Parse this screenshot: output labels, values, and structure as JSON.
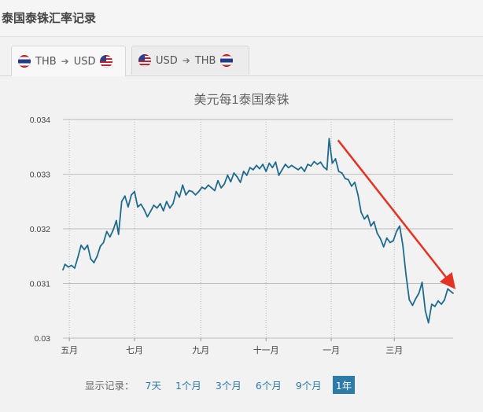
{
  "header": {
    "title": "泰国泰铢汇率记录"
  },
  "tabs": [
    {
      "from": "THB",
      "to": "USD",
      "from_flag": "thailand-flag",
      "to_flag": "usa-flag",
      "active": true
    },
    {
      "from": "USD",
      "to": "THB",
      "from_flag": "usa-flag",
      "to_flag": "thailand-flag",
      "active": false
    }
  ],
  "periods": {
    "label": "显示记录：",
    "options": [
      "7天",
      "1个月",
      "3个月",
      "6个月",
      "9个月",
      "1年"
    ],
    "selected": "1年"
  },
  "colors": {
    "line": "#1f6b8e",
    "arrow": "#e53222",
    "grid": "#bcbcbc",
    "accent": "#2e7ba9"
  },
  "chart_data": {
    "type": "line",
    "title": "美元每1泰国泰铢",
    "xlabel": "",
    "ylabel": "",
    "ylim": [
      0.03,
      0.034
    ],
    "yticks": [
      "0.034",
      "0.033",
      "0.032",
      "0.031",
      "0.03"
    ],
    "yticks_values": [
      0.034,
      0.033,
      0.032,
      0.031,
      0.03
    ],
    "xlim": [
      "2018-04-25",
      "2019-04-25"
    ],
    "xticks": [
      {
        "label": "五月",
        "date": "2018-05-01"
      },
      {
        "label": "七月",
        "date": "2018-07-01"
      },
      {
        "label": "九月",
        "date": "2018-09-01"
      },
      {
        "label": "十一月",
        "date": "2018-11-01"
      },
      {
        "label": "一月",
        "date": "2019-01-01"
      },
      {
        "label": "三月",
        "date": "2019-03-01"
      }
    ],
    "grid": true,
    "legend": "none",
    "series": [
      {
        "values": [
          [
            "2018-04-25",
            0.03125
          ],
          [
            "2018-04-27",
            0.03135
          ],
          [
            "2018-04-30",
            0.0313
          ],
          [
            "2018-05-03",
            0.03133
          ],
          [
            "2018-05-06",
            0.03128
          ],
          [
            "2018-05-09",
            0.03148
          ],
          [
            "2018-05-12",
            0.0317
          ],
          [
            "2018-05-15",
            0.03162
          ],
          [
            "2018-05-18",
            0.0317
          ],
          [
            "2018-05-21",
            0.03145
          ],
          [
            "2018-05-24",
            0.03138
          ],
          [
            "2018-05-27",
            0.0315
          ],
          [
            "2018-05-30",
            0.03168
          ],
          [
            "2018-06-02",
            0.03175
          ],
          [
            "2018-06-05",
            0.03195
          ],
          [
            "2018-06-08",
            0.03185
          ],
          [
            "2018-06-11",
            0.03198
          ],
          [
            "2018-06-14",
            0.03215
          ],
          [
            "2018-06-16",
            0.0319
          ],
          [
            "2018-06-19",
            0.0325
          ],
          [
            "2018-06-22",
            0.0326
          ],
          [
            "2018-06-25",
            0.0324
          ],
          [
            "2018-06-28",
            0.03262
          ],
          [
            "2018-07-01",
            0.03268
          ],
          [
            "2018-07-04",
            0.0324
          ],
          [
            "2018-07-07",
            0.03245
          ],
          [
            "2018-07-10",
            0.03235
          ],
          [
            "2018-07-13",
            0.03222
          ],
          [
            "2018-07-16",
            0.03232
          ],
          [
            "2018-07-19",
            0.03243
          ],
          [
            "2018-07-22",
            0.03238
          ],
          [
            "2018-07-25",
            0.03246
          ],
          [
            "2018-07-28",
            0.03233
          ],
          [
            "2018-07-31",
            0.0325
          ],
          [
            "2018-08-03",
            0.03238
          ],
          [
            "2018-08-06",
            0.03246
          ],
          [
            "2018-08-09",
            0.03268
          ],
          [
            "2018-08-12",
            0.03258
          ],
          [
            "2018-08-15",
            0.0328
          ],
          [
            "2018-08-18",
            0.03262
          ],
          [
            "2018-08-21",
            0.0327
          ],
          [
            "2018-08-24",
            0.03268
          ],
          [
            "2018-08-27",
            0.03262
          ],
          [
            "2018-08-30",
            0.03268
          ],
          [
            "2018-09-02",
            0.03276
          ],
          [
            "2018-09-05",
            0.03273
          ],
          [
            "2018-09-08",
            0.0328
          ],
          [
            "2018-09-11",
            0.03275
          ],
          [
            "2018-09-14",
            0.0327
          ],
          [
            "2018-09-17",
            0.03288
          ],
          [
            "2018-09-20",
            0.03275
          ],
          [
            "2018-09-23",
            0.03282
          ],
          [
            "2018-09-26",
            0.03298
          ],
          [
            "2018-09-29",
            0.03286
          ],
          [
            "2018-10-02",
            0.03302
          ],
          [
            "2018-10-05",
            0.03295
          ],
          [
            "2018-10-08",
            0.03285
          ],
          [
            "2018-10-11",
            0.03305
          ],
          [
            "2018-10-14",
            0.03298
          ],
          [
            "2018-10-17",
            0.03312
          ],
          [
            "2018-10-20",
            0.03308
          ],
          [
            "2018-10-23",
            0.03316
          ],
          [
            "2018-10-26",
            0.0331
          ],
          [
            "2018-10-29",
            0.03318
          ],
          [
            "2018-11-01",
            0.03305
          ],
          [
            "2018-11-04",
            0.0332
          ],
          [
            "2018-11-07",
            0.03312
          ],
          [
            "2018-11-10",
            0.03322
          ],
          [
            "2018-11-13",
            0.03298
          ],
          [
            "2018-11-16",
            0.03308
          ],
          [
            "2018-11-19",
            0.03318
          ],
          [
            "2018-11-22",
            0.03312
          ],
          [
            "2018-11-25",
            0.03316
          ],
          [
            "2018-11-28",
            0.03312
          ],
          [
            "2018-12-01",
            0.03308
          ],
          [
            "2018-12-04",
            0.03313
          ],
          [
            "2018-12-07",
            0.03305
          ],
          [
            "2018-12-10",
            0.03318
          ],
          [
            "2018-12-13",
            0.03315
          ],
          [
            "2018-12-16",
            0.03323
          ],
          [
            "2018-12-19",
            0.03318
          ],
          [
            "2018-12-22",
            0.03322
          ],
          [
            "2018-12-25",
            0.03313
          ],
          [
            "2018-12-28",
            0.03308
          ],
          [
            "2018-12-30",
            0.03365
          ],
          [
            "2019-01-02",
            0.0332
          ],
          [
            "2019-01-05",
            0.03328
          ],
          [
            "2019-01-08",
            0.03305
          ],
          [
            "2019-01-11",
            0.03302
          ],
          [
            "2019-01-14",
            0.03292
          ],
          [
            "2019-01-17",
            0.0329
          ],
          [
            "2019-01-20",
            0.03278
          ],
          [
            "2019-01-23",
            0.03285
          ],
          [
            "2019-01-26",
            0.03262
          ],
          [
            "2019-01-29",
            0.0323
          ],
          [
            "2019-02-01",
            0.03218
          ],
          [
            "2019-02-04",
            0.03225
          ],
          [
            "2019-02-07",
            0.03205
          ],
          [
            "2019-02-10",
            0.03213
          ],
          [
            "2019-02-13",
            0.03192
          ],
          [
            "2019-02-16",
            0.03182
          ],
          [
            "2019-02-19",
            0.03167
          ],
          [
            "2019-02-22",
            0.03183
          ],
          [
            "2019-02-25",
            0.03175
          ],
          [
            "2019-02-28",
            0.03178
          ],
          [
            "2019-03-03",
            0.03195
          ],
          [
            "2019-03-06",
            0.03205
          ],
          [
            "2019-03-09",
            0.0317
          ],
          [
            "2019-03-12",
            0.03115
          ],
          [
            "2019-03-15",
            0.0307
          ],
          [
            "2019-03-18",
            0.0306
          ],
          [
            "2019-03-21",
            0.03072
          ],
          [
            "2019-03-24",
            0.03082
          ],
          [
            "2019-03-27",
            0.03102
          ],
          [
            "2019-03-30",
            0.0305
          ],
          [
            "2019-04-02",
            0.03028
          ],
          [
            "2019-04-05",
            0.03062
          ],
          [
            "2019-04-08",
            0.03058
          ],
          [
            "2019-04-11",
            0.03068
          ],
          [
            "2019-04-14",
            0.03062
          ],
          [
            "2019-04-17",
            0.0307
          ],
          [
            "2019-04-20",
            0.0309
          ],
          [
            "2019-04-25",
            0.03082
          ]
        ]
      }
    ],
    "annotations": [
      {
        "type": "arrow",
        "from": [
          "2018-12-31",
          0.03365
        ],
        "to": [
          "2019-04-25",
          0.03095
        ]
      }
    ]
  }
}
